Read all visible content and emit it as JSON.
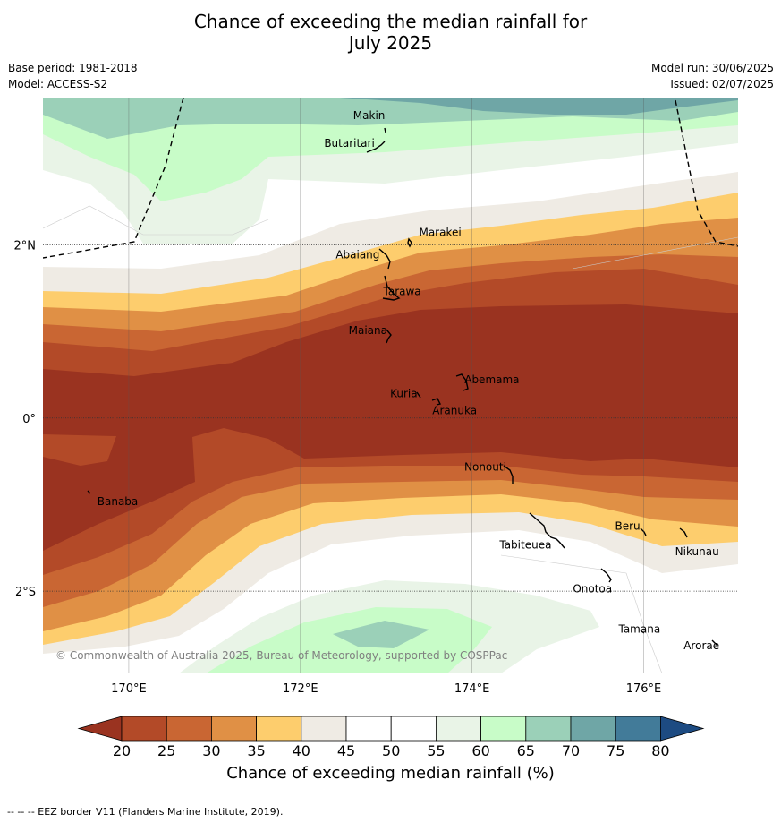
{
  "title_line1": "Chance of exceeding the median rainfall for",
  "title_line2": "July 2025",
  "meta": {
    "base_period": "Base period: 1981-2018",
    "model": "Model: ACCESS-S2",
    "model_run": "Model run: 30/06/2025",
    "issued": "Issued: 02/07/2025"
  },
  "map": {
    "lon_range": [
      169,
      177.1
    ],
    "lat_range": [
      -2.95,
      3.7
    ],
    "lon_ticks": [
      {
        "value": 170,
        "label": "170°E"
      },
      {
        "value": 172,
        "label": "172°E"
      },
      {
        "value": 174,
        "label": "174°E"
      },
      {
        "value": 176,
        "label": "176°E"
      }
    ],
    "lat_ticks": [
      {
        "value": 2,
        "label": "2°N"
      },
      {
        "value": 0,
        "label": "0°"
      },
      {
        "value": -2,
        "label": "2°S"
      }
    ],
    "copyright": "© Commonwealth of Australia 2025, Bureau of Meteorology, supported by COSPPac",
    "islands": [
      {
        "name": "Makin",
        "lon": 172.98,
        "lat": 3.35
      },
      {
        "name": "Butaritari",
        "lon": 172.85,
        "lat": 3.07
      },
      {
        "name": "Marakei",
        "lon": 173.3,
        "lat": 2.02
      },
      {
        "name": "Abaiang",
        "lon": 172.85,
        "lat": 1.8
      },
      {
        "name": "Tarawa",
        "lon": 173.05,
        "lat": 1.38
      },
      {
        "name": "Maiana",
        "lon": 173.02,
        "lat": 0.95
      },
      {
        "name": "Abemama",
        "lon": 173.85,
        "lat": 0.4
      },
      {
        "name": "Kuria",
        "lon": 173.4,
        "lat": 0.22
      },
      {
        "name": "Aranuka",
        "lon": 173.6,
        "lat": 0.17
      },
      {
        "name": "Nonouti",
        "lon": 174.4,
        "lat": -0.65
      },
      {
        "name": "Banaba",
        "lon": 169.55,
        "lat": -0.88
      },
      {
        "name": "Tabiteuea",
        "lon": 174.8,
        "lat": -1.3
      },
      {
        "name": "Beru",
        "lon": 176.0,
        "lat": -1.35
      },
      {
        "name": "Nikunau",
        "lon": 176.45,
        "lat": -1.4
      },
      {
        "name": "Onotoa",
        "lon": 175.55,
        "lat": -1.87
      },
      {
        "name": "Tamana",
        "lon": 176.0,
        "lat": -2.5
      },
      {
        "name": "Arorae",
        "lon": 176.8,
        "lat": -2.65
      }
    ]
  },
  "legend": {
    "title": "Chance of exceeding median rainfall (%)",
    "ticks": [
      "20",
      "25",
      "30",
      "35",
      "40",
      "45",
      "50",
      "55",
      "60",
      "65",
      "70",
      "75",
      "80"
    ],
    "colors": [
      "#9a3320",
      "#b34a28",
      "#c96633",
      "#e09045",
      "#fdcd6d",
      "#efebe4",
      "#ffffff",
      "#ffffff",
      "#e9f4e7",
      "#c8fcc8",
      "#9bd0b8",
      "#6fa6a6",
      "#427b99",
      "#1d4b82"
    ]
  },
  "footer": "--  --  -- EEZ border V11 (Flanders Marine Institute, 2019)."
}
